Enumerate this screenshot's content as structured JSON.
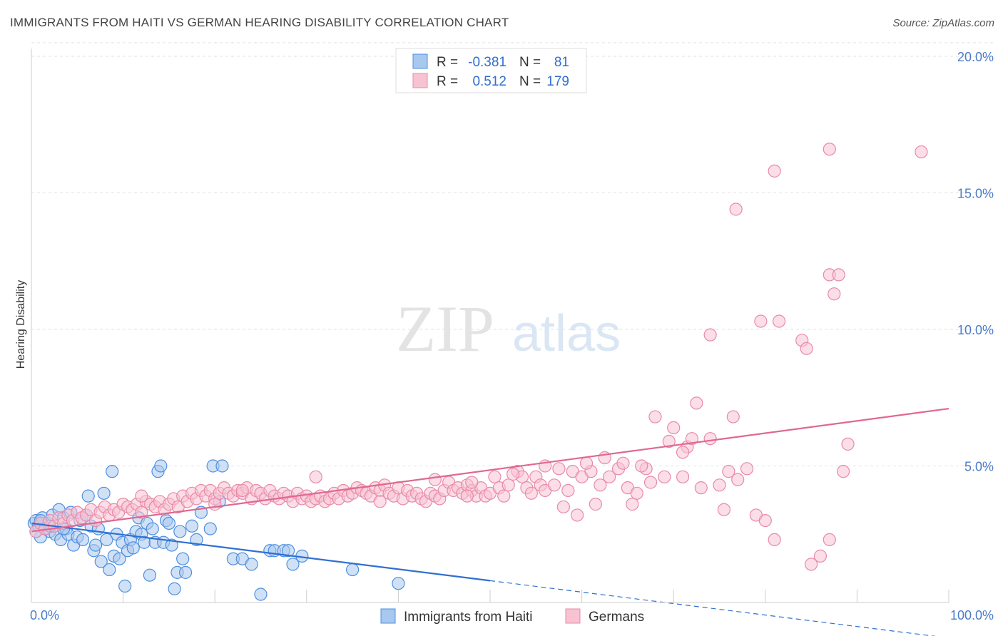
{
  "title": "IMMIGRANTS FROM HAITI VS GERMAN HEARING DISABILITY CORRELATION CHART",
  "source": "Source: ZipAtlas.com",
  "watermark": {
    "zip": "ZIP",
    "atlas": "atlas"
  },
  "colors": {
    "blue_fill": "#a9c8ef",
    "blue_stroke": "#4e8fe0",
    "blue_line": "#2e6fd3",
    "pink_fill": "#f7c3d3",
    "pink_stroke": "#e88aa8",
    "pink_line": "#e0688f"
  },
  "legend": {
    "rows": [
      {
        "r_label": "R =",
        "r_value": "-0.381",
        "n_label": "N =",
        "n_value": "81"
      },
      {
        "r_label": "R =",
        "r_value": "0.512",
        "n_label": "N =",
        "n_value": "179"
      }
    ]
  },
  "chart_data": {
    "type": "scatter",
    "title": "IMMIGRANTS FROM HAITI VS GERMAN HEARING DISABILITY CORRELATION CHART",
    "xlabel": "",
    "ylabel": "Hearing Disability",
    "xlim": [
      0,
      100
    ],
    "ylim": [
      0,
      20.5
    ],
    "x_tick_labels": [
      "0.0%",
      "100.0%"
    ],
    "y_ticks": [
      5,
      10,
      15,
      20
    ],
    "y_tick_labels": [
      "5.0%",
      "10.0%",
      "15.0%",
      "20.0%"
    ],
    "grid": true,
    "legend_position": "top-center",
    "series": [
      {
        "name": "Immigrants from Haiti",
        "r": -0.381,
        "n": 81,
        "trend": {
          "x0": 0,
          "y0": 2.9,
          "x1": 50,
          "y1": 0.8,
          "dash_x1": 100,
          "dash_y1": -1.3
        },
        "points": [
          [
            0.3,
            2.9
          ],
          [
            0.5,
            3.0
          ],
          [
            0.8,
            2.8
          ],
          [
            1.0,
            2.4
          ],
          [
            1.2,
            3.1
          ],
          [
            1.5,
            2.7
          ],
          [
            1.8,
            2.9
          ],
          [
            2.0,
            2.6
          ],
          [
            2.3,
            3.2
          ],
          [
            2.6,
            2.5
          ],
          [
            3.0,
            3.4
          ],
          [
            3.2,
            2.3
          ],
          [
            3.5,
            3.1
          ],
          [
            3.8,
            2.7
          ],
          [
            4.0,
            2.5
          ],
          [
            4.3,
            3.3
          ],
          [
            4.6,
            2.1
          ],
          [
            5.0,
            2.4
          ],
          [
            5.3,
            3.0
          ],
          [
            5.6,
            2.3
          ],
          [
            6.0,
            3.2
          ],
          [
            6.2,
            3.9
          ],
          [
            6.5,
            2.8
          ],
          [
            6.8,
            1.9
          ],
          [
            7.0,
            2.1
          ],
          [
            7.3,
            2.7
          ],
          [
            7.6,
            1.5
          ],
          [
            7.9,
            4.0
          ],
          [
            8.2,
            2.3
          ],
          [
            8.5,
            1.2
          ],
          [
            8.8,
            4.8
          ],
          [
            9.0,
            1.7
          ],
          [
            9.3,
            2.5
          ],
          [
            9.6,
            1.6
          ],
          [
            9.9,
            2.2
          ],
          [
            10.2,
            0.6
          ],
          [
            10.5,
            1.9
          ],
          [
            10.8,
            2.3
          ],
          [
            11.1,
            2.0
          ],
          [
            11.4,
            2.6
          ],
          [
            11.7,
            3.1
          ],
          [
            12.0,
            2.5
          ],
          [
            12.3,
            2.2
          ],
          [
            12.6,
            2.9
          ],
          [
            12.9,
            1.0
          ],
          [
            13.2,
            2.7
          ],
          [
            13.5,
            2.2
          ],
          [
            13.8,
            4.8
          ],
          [
            14.1,
            5.0
          ],
          [
            14.4,
            2.2
          ],
          [
            14.7,
            3.0
          ],
          [
            15.0,
            2.9
          ],
          [
            15.3,
            2.1
          ],
          [
            15.6,
            0.5
          ],
          [
            15.9,
            1.1
          ],
          [
            16.2,
            2.6
          ],
          [
            16.5,
            1.6
          ],
          [
            16.8,
            1.1
          ],
          [
            17.5,
            2.8
          ],
          [
            18.0,
            2.3
          ],
          [
            18.5,
            3.3
          ],
          [
            19.5,
            2.7
          ],
          [
            19.8,
            5.0
          ],
          [
            20.5,
            3.7
          ],
          [
            20.8,
            5.0
          ],
          [
            22.0,
            1.6
          ],
          [
            23.0,
            1.6
          ],
          [
            24.0,
            1.4
          ],
          [
            25.0,
            0.3
          ],
          [
            26.0,
            1.9
          ],
          [
            26.5,
            1.9
          ],
          [
            27.5,
            1.9
          ],
          [
            28.0,
            1.9
          ],
          [
            28.5,
            1.4
          ],
          [
            29.5,
            1.7
          ],
          [
            35.0,
            1.2
          ],
          [
            40.0,
            0.7
          ],
          [
            1.0,
            3.0
          ],
          [
            2.0,
            2.8
          ],
          [
            0.5,
            2.6
          ],
          [
            3.5,
            2.7
          ]
        ]
      },
      {
        "name": "Germans",
        "r": 0.512,
        "n": 179,
        "trend": {
          "x0": 0,
          "y0": 2.6,
          "x1": 100,
          "y1": 7.1
        },
        "points": [
          [
            0.5,
            2.6
          ],
          [
            1.0,
            2.9
          ],
          [
            1.5,
            2.7
          ],
          [
            2.0,
            3.0
          ],
          [
            2.5,
            2.8
          ],
          [
            3.0,
            3.1
          ],
          [
            3.5,
            2.9
          ],
          [
            4.0,
            3.2
          ],
          [
            4.5,
            3.0
          ],
          [
            5.0,
            3.3
          ],
          [
            5.5,
            3.1
          ],
          [
            6.0,
            3.2
          ],
          [
            6.5,
            3.4
          ],
          [
            7.0,
            3.0
          ],
          [
            7.5,
            3.3
          ],
          [
            8.0,
            3.5
          ],
          [
            8.5,
            3.2
          ],
          [
            9.0,
            3.4
          ],
          [
            9.5,
            3.3
          ],
          [
            10.0,
            3.6
          ],
          [
            10.5,
            3.5
          ],
          [
            11.0,
            3.4
          ],
          [
            11.5,
            3.6
          ],
          [
            12.0,
            3.3
          ],
          [
            12.5,
            3.7
          ],
          [
            13.0,
            3.6
          ],
          [
            13.5,
            3.5
          ],
          [
            14.0,
            3.7
          ],
          [
            14.5,
            3.4
          ],
          [
            15.0,
            3.6
          ],
          [
            15.5,
            3.8
          ],
          [
            16.0,
            3.5
          ],
          [
            16.5,
            3.9
          ],
          [
            17.0,
            3.7
          ],
          [
            17.5,
            4.0
          ],
          [
            18.0,
            3.8
          ],
          [
            18.5,
            4.1
          ],
          [
            19.0,
            3.9
          ],
          [
            19.5,
            4.1
          ],
          [
            20.0,
            3.8
          ],
          [
            20.5,
            4.0
          ],
          [
            21.0,
            4.2
          ],
          [
            21.5,
            4.0
          ],
          [
            22.0,
            3.9
          ],
          [
            22.5,
            4.1
          ],
          [
            23.0,
            4.0
          ],
          [
            23.5,
            4.2
          ],
          [
            24.0,
            3.8
          ],
          [
            24.5,
            4.1
          ],
          [
            25.0,
            4.0
          ],
          [
            25.5,
            3.8
          ],
          [
            26.0,
            4.1
          ],
          [
            26.5,
            3.9
          ],
          [
            27.0,
            3.8
          ],
          [
            27.5,
            4.0
          ],
          [
            28.0,
            3.9
          ],
          [
            28.5,
            3.7
          ],
          [
            29.0,
            4.0
          ],
          [
            29.5,
            3.8
          ],
          [
            30.0,
            3.9
          ],
          [
            30.5,
            3.7
          ],
          [
            31.0,
            3.8
          ],
          [
            31.5,
            3.9
          ],
          [
            32.0,
            3.7
          ],
          [
            32.5,
            3.8
          ],
          [
            33.0,
            4.0
          ],
          [
            33.5,
            3.8
          ],
          [
            34.0,
            4.1
          ],
          [
            34.5,
            3.9
          ],
          [
            35.0,
            4.0
          ],
          [
            35.5,
            4.2
          ],
          [
            36.0,
            4.1
          ],
          [
            36.5,
            4.0
          ],
          [
            37.0,
            3.9
          ],
          [
            37.5,
            4.2
          ],
          [
            38.0,
            4.1
          ],
          [
            38.5,
            4.3
          ],
          [
            39.0,
            4.0
          ],
          [
            39.5,
            3.9
          ],
          [
            40.0,
            4.2
          ],
          [
            40.5,
            3.8
          ],
          [
            41.0,
            4.1
          ],
          [
            41.5,
            3.9
          ],
          [
            42.0,
            4.0
          ],
          [
            42.5,
            3.8
          ],
          [
            43.0,
            3.7
          ],
          [
            43.5,
            4.0
          ],
          [
            44.0,
            3.9
          ],
          [
            44.5,
            3.8
          ],
          [
            45.0,
            4.1
          ],
          [
            45.5,
            4.4
          ],
          [
            46.0,
            4.1
          ],
          [
            46.5,
            4.2
          ],
          [
            47.0,
            4.0
          ],
          [
            47.5,
            4.3
          ],
          [
            48.0,
            4.1
          ],
          [
            48.5,
            3.9
          ],
          [
            49.0,
            4.2
          ],
          [
            49.5,
            3.9
          ],
          [
            50.0,
            4.0
          ],
          [
            50.5,
            4.6
          ],
          [
            51.0,
            4.2
          ],
          [
            51.5,
            3.9
          ],
          [
            52.0,
            4.3
          ],
          [
            53.0,
            4.8
          ],
          [
            53.5,
            4.6
          ],
          [
            54.0,
            4.2
          ],
          [
            55.0,
            4.6
          ],
          [
            55.5,
            4.3
          ],
          [
            56.0,
            4.1
          ],
          [
            57.0,
            4.3
          ],
          [
            58.0,
            3.5
          ],
          [
            58.5,
            4.1
          ],
          [
            59.0,
            4.8
          ],
          [
            59.5,
            3.2
          ],
          [
            60.0,
            4.6
          ],
          [
            61.0,
            4.8
          ],
          [
            61.5,
            3.6
          ],
          [
            62.0,
            4.3
          ],
          [
            62.5,
            5.3
          ],
          [
            63.0,
            4.6
          ],
          [
            64.0,
            4.9
          ],
          [
            65.0,
            4.2
          ],
          [
            65.5,
            3.6
          ],
          [
            66.0,
            4.0
          ],
          [
            67.0,
            4.9
          ],
          [
            67.5,
            4.4
          ],
          [
            68.0,
            6.8
          ],
          [
            69.0,
            4.6
          ],
          [
            69.5,
            5.9
          ],
          [
            70.0,
            6.4
          ],
          [
            71.0,
            4.6
          ],
          [
            71.5,
            5.7
          ],
          [
            72.0,
            6.0
          ],
          [
            73.0,
            4.2
          ],
          [
            74.0,
            6.0
          ],
          [
            75.0,
            4.3
          ],
          [
            75.5,
            3.4
          ],
          [
            76.0,
            4.8
          ],
          [
            77.0,
            4.5
          ],
          [
            78.0,
            4.9
          ],
          [
            79.0,
            3.2
          ],
          [
            80.0,
            3.0
          ],
          [
            81.0,
            2.3
          ],
          [
            85.0,
            1.4
          ],
          [
            86.0,
            1.7
          ],
          [
            87.0,
            2.3
          ],
          [
            89.0,
            5.8
          ],
          [
            88.5,
            4.8
          ],
          [
            72.5,
            7.3
          ],
          [
            76.5,
            6.8
          ],
          [
            71.0,
            5.5
          ],
          [
            64.5,
            5.1
          ],
          [
            60.5,
            5.1
          ],
          [
            56.0,
            5.0
          ],
          [
            52.5,
            4.7
          ],
          [
            48.0,
            4.4
          ],
          [
            44.0,
            4.5
          ],
          [
            31.0,
            4.6
          ],
          [
            23.0,
            4.1
          ],
          [
            74.0,
            9.8
          ],
          [
            79.5,
            10.3
          ],
          [
            81.5,
            10.3
          ],
          [
            84.0,
            9.6
          ],
          [
            84.5,
            9.3
          ],
          [
            87.0,
            12.0
          ],
          [
            88.0,
            12.0
          ],
          [
            87.5,
            11.3
          ],
          [
            76.8,
            14.4
          ],
          [
            81.0,
            15.8
          ],
          [
            87.0,
            16.6
          ],
          [
            97.0,
            16.5
          ],
          [
            20.0,
            3.6
          ],
          [
            12.0,
            3.9
          ],
          [
            66.5,
            5.0
          ],
          [
            57.5,
            4.9
          ],
          [
            54.5,
            4.0
          ],
          [
            47.5,
            3.9
          ],
          [
            38.0,
            3.7
          ]
        ]
      }
    ]
  }
}
